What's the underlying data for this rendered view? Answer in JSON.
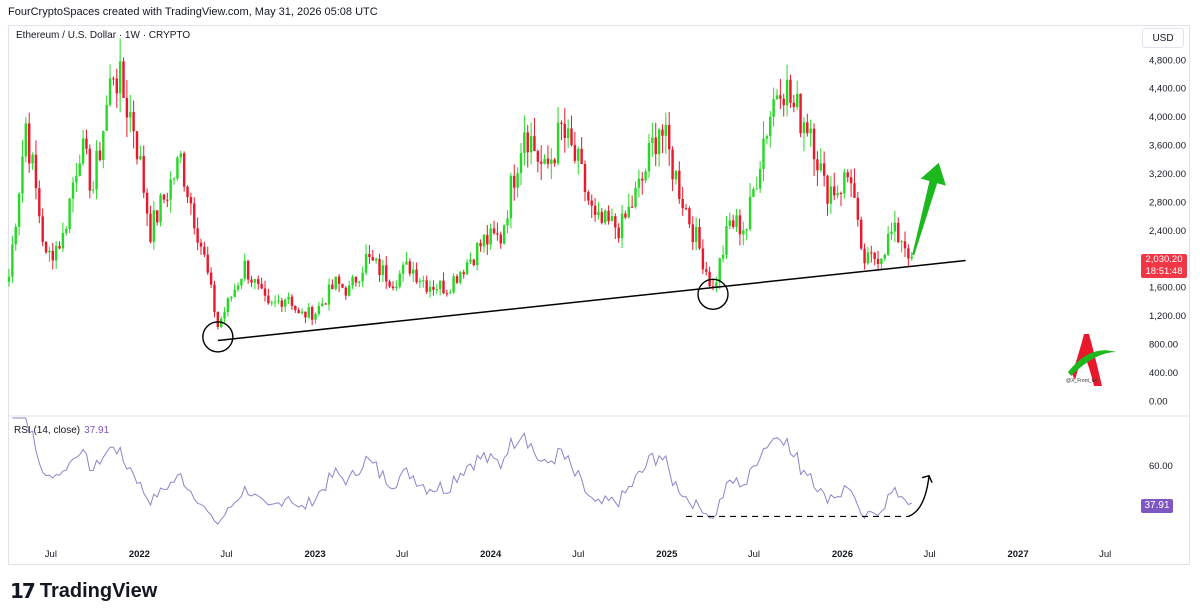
{
  "header": {
    "created_line": "FourCryptoSpaces created with TradingView.com, May 31, 2026 05:08 UTC"
  },
  "symbol": {
    "title": "Ethereum / U.S. Dollar · 1W · CRYPTO",
    "currency": "USD"
  },
  "price_tag": {
    "price": "2,030.20",
    "countdown": "18:51:48",
    "color": "#f23645"
  },
  "rsi": {
    "label": "RSI (14, close)",
    "value": "37.91",
    "tag": "37.91",
    "color": "#7e57c2"
  },
  "watermark": {
    "handle": "@X_Front_ier"
  },
  "footer": {
    "brand": "TradingView",
    "logo": "17"
  },
  "colors": {
    "up": "#26d926",
    "down": "#e8192c",
    "trendline": "#000000",
    "arrow": "#1db81d",
    "rsi_line": "#8f84c9"
  },
  "chart_data": [
    {
      "type": "candlestick",
      "title": "Ethereum / U.S. Dollar · 1W · CRYPTO",
      "y_ticks": [
        0,
        400,
        800,
        1200,
        1600,
        2000,
        2400,
        2800,
        3200,
        3600,
        4000,
        4400,
        4800
      ],
      "y_tick_labels": [
        "0.00",
        "400.00",
        "800.00",
        "1,200.00",
        "1,600.00",
        "2,000.00",
        "2,400.00",
        "2,800.00",
        "3,200.00",
        "3,600.00",
        "4,000.00",
        "4,400.00",
        "4,800.00"
      ],
      "x_tick_labels": [
        "Jul",
        "2022",
        "Jul",
        "2023",
        "Jul",
        "2024",
        "Jul",
        "2025",
        "Jul",
        "2026",
        "Jul",
        "2027",
        "Jul"
      ],
      "x_tick_dates": [
        "2021-07-01",
        "2022-01-01",
        "2022-07-01",
        "2023-01-01",
        "2023-07-01",
        "2024-01-01",
        "2024-07-01",
        "2025-01-01",
        "2025-07-01",
        "2026-01-01",
        "2026-07-01",
        "2027-01-01",
        "2027-07-01"
      ],
      "bold_ticks": [
        "2022",
        "2023",
        "2024",
        "2025",
        "2026",
        "2027"
      ],
      "hidden_ticks": [
        "2026"
      ],
      "x_range": [
        "2021-04-05",
        "2027-09-01"
      ],
      "y_range": [
        -100,
        5050
      ],
      "anchors": [
        [
          "2021-04-05",
          1750
        ],
        [
          "2021-05-10",
          3900
        ],
        [
          "2021-06-21",
          2000
        ],
        [
          "2021-07-26",
          2300
        ],
        [
          "2021-08-30",
          3600
        ],
        [
          "2021-09-27",
          3000
        ],
        [
          "2021-11-08",
          4700
        ],
        [
          "2021-12-20",
          3900
        ],
        [
          "2022-01-24",
          2400
        ],
        [
          "2022-03-28",
          3400
        ],
        [
          "2022-05-16",
          2000
        ],
        [
          "2022-06-13",
          1050
        ],
        [
          "2022-08-08",
          1900
        ],
        [
          "2022-09-26",
          1300
        ],
        [
          "2022-11-07",
          1500
        ],
        [
          "2022-11-28",
          1200
        ],
        [
          "2023-01-02",
          1250
        ],
        [
          "2023-02-13",
          1650
        ],
        [
          "2023-03-13",
          1550
        ],
        [
          "2023-04-17",
          2000
        ],
        [
          "2023-06-12",
          1700
        ],
        [
          "2023-07-17",
          1900
        ],
        [
          "2023-08-21",
          1650
        ],
        [
          "2023-10-02",
          1600
        ],
        [
          "2023-11-06",
          1900
        ],
        [
          "2023-12-18",
          2250
        ],
        [
          "2024-01-22",
          2300
        ],
        [
          "2024-03-11",
          3900
        ],
        [
          "2024-04-22",
          3200
        ],
        [
          "2024-05-27",
          3800
        ],
        [
          "2024-07-01",
          3300
        ],
        [
          "2024-08-05",
          2500
        ],
        [
          "2024-09-30",
          2450
        ],
        [
          "2024-11-11",
          3100
        ],
        [
          "2024-12-16",
          3900
        ],
        [
          "2025-01-13",
          3300
        ],
        [
          "2025-02-10",
          2700
        ],
        [
          "2025-03-17",
          2000
        ],
        [
          "2025-04-07",
          1550
        ],
        [
          "2025-05-12",
          2500
        ],
        [
          "2025-06-16",
          2450
        ],
        [
          "2025-07-21",
          3700
        ],
        [
          "2025-08-25",
          4600
        ],
        [
          "2025-09-22",
          4100
        ],
        [
          "2025-10-27",
          3900
        ],
        [
          "2025-11-24",
          3000
        ],
        [
          "2025-12-22",
          3000
        ],
        [
          "2026-01-19",
          3200
        ],
        [
          "2026-02-09",
          2000
        ],
        [
          "2026-02-23",
          1950
        ],
        [
          "2026-03-23",
          2100
        ],
        [
          "2026-04-13",
          2350
        ],
        [
          "2026-05-04",
          2300
        ],
        [
          "2026-05-25",
          2030
        ]
      ],
      "last_price": 2030.2,
      "trendline": [
        [
          "2022-06-13",
          850
        ],
        [
          "2026-09-14",
          1975
        ]
      ],
      "circled_lows": [
        [
          "2022-06-13",
          900
        ],
        [
          "2025-04-07",
          1500
        ]
      ],
      "projection_arrow": [
        [
          "2026-05-28",
          2050
        ],
        [
          "2026-07-20",
          3350
        ]
      ]
    },
    {
      "type": "line",
      "title": "RSI (14, close)",
      "y_ticks": [
        60
      ],
      "y_tick_labels": [
        "60.00"
      ],
      "y_range": [
        22,
        88
      ],
      "current": 37.91,
      "support_line": [
        [
          "2025-02-10",
          30
        ],
        [
          "2026-05-18",
          30
        ]
      ],
      "projection_arrow": [
        [
          "2026-05-18",
          30
        ],
        [
          "2026-06-30",
          54
        ]
      ]
    }
  ]
}
